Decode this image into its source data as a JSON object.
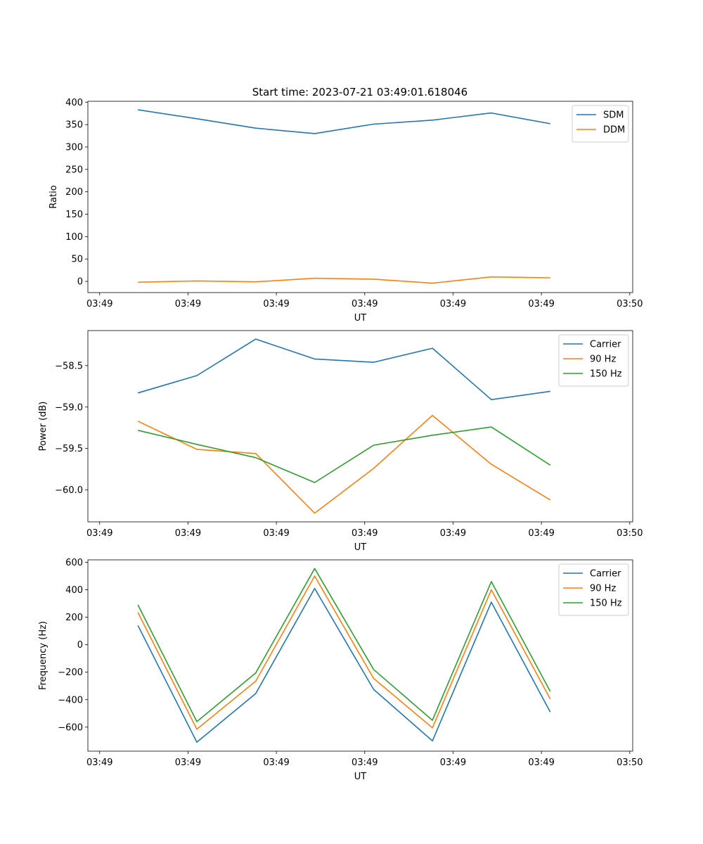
{
  "figure_title": "Start time: 2023-07-21 03:49:01.618046",
  "colors": {
    "blue": "#1f77b4",
    "orange": "#ff7f0e",
    "green": "#2ca02c"
  },
  "chart_data": [
    {
      "type": "line",
      "id": "ratio",
      "title": "Start time: 2023-07-21 03:49:01.618046",
      "xlabel": "UT",
      "ylabel": "Ratio",
      "x": [
        1,
        2,
        3,
        4,
        5,
        6,
        7,
        8
      ],
      "xlim": [
        0.15,
        9.4
      ],
      "xticks": [
        0.35,
        1.85,
        3.35,
        4.85,
        6.35,
        7.85,
        9.35
      ],
      "xticklabels": [
        "03:49",
        "03:49",
        "03:49",
        "03:49",
        "03:49",
        "03:49",
        "03:50"
      ],
      "ylim": [
        -25,
        402
      ],
      "yticks": [
        0,
        50,
        100,
        150,
        200,
        250,
        300,
        350,
        400
      ],
      "yticklabels": [
        "0",
        "50",
        "100",
        "150",
        "200",
        "250",
        "300",
        "350",
        "400"
      ],
      "legend_position": "top-right",
      "series": [
        {
          "name": "SDM",
          "color": "#1f77b4",
          "values": [
            383,
            363,
            342,
            330,
            351,
            360,
            376,
            352
          ]
        },
        {
          "name": "DDM",
          "color": "#ff7f0e",
          "values": [
            -2,
            1,
            -1,
            7,
            5,
            -4,
            10,
            8
          ]
        }
      ]
    },
    {
      "type": "line",
      "id": "power",
      "title": "",
      "xlabel": "UT",
      "ylabel": "Power (dB)",
      "x": [
        1,
        2,
        3,
        4,
        5,
        6,
        7,
        8
      ],
      "xlim": [
        0.15,
        9.4
      ],
      "xticks": [
        0.35,
        1.85,
        3.35,
        4.85,
        6.35,
        7.85,
        9.35
      ],
      "xticklabels": [
        "03:49",
        "03:49",
        "03:49",
        "03:49",
        "03:49",
        "03:49",
        "03:50"
      ],
      "ylim": [
        -60.385,
        -58.077
      ],
      "yticks": [
        -60.0,
        -59.5,
        -59.0,
        -58.5
      ],
      "yticklabels": [
        "−60.0",
        "−59.5",
        "−59.0",
        "−58.5"
      ],
      "legend_position": "top-right",
      "series": [
        {
          "name": "Carrier",
          "color": "#1f77b4",
          "values": [
            -58.83,
            -58.62,
            -58.18,
            -58.42,
            -58.46,
            -58.29,
            -58.91,
            -58.81
          ]
        },
        {
          "name": "90 Hz",
          "color": "#ff7f0e",
          "values": [
            -59.17,
            -59.51,
            -59.56,
            -60.28,
            -59.74,
            -59.1,
            -59.69,
            -60.12
          ]
        },
        {
          "name": "150 Hz",
          "color": "#2ca02c",
          "values": [
            -59.28,
            -59.45,
            -59.61,
            -59.91,
            -59.46,
            -59.34,
            -59.24,
            -59.7
          ]
        }
      ]
    },
    {
      "type": "line",
      "id": "frequency",
      "title": "",
      "xlabel": "UT",
      "ylabel": "Frequency (Hz)",
      "x": [
        1,
        2,
        3,
        4,
        5,
        6,
        7,
        8
      ],
      "xlim": [
        0.15,
        9.4
      ],
      "xticks": [
        0.35,
        1.85,
        3.35,
        4.85,
        6.35,
        7.85,
        9.35
      ],
      "xticklabels": [
        "03:49",
        "03:49",
        "03:49",
        "03:49",
        "03:49",
        "03:49",
        "03:50"
      ],
      "ylim": [
        -775,
        618
      ],
      "yticks": [
        -600,
        -400,
        -200,
        0,
        200,
        400,
        600
      ],
      "yticklabels": [
        "−600",
        "−400",
        "−200",
        "0",
        "200",
        "400",
        "600"
      ],
      "legend_position": "top-right",
      "series": [
        {
          "name": "Carrier",
          "color": "#1f77b4",
          "values": [
            140,
            -710,
            -355,
            410,
            -325,
            -700,
            310,
            -490
          ]
        },
        {
          "name": "90 Hz",
          "color": "#ff7f0e",
          "values": [
            235,
            -615,
            -265,
            500,
            -245,
            -605,
            400,
            -395
          ]
        },
        {
          "name": "150 Hz",
          "color": "#2ca02c",
          "values": [
            290,
            -560,
            -205,
            555,
            -180,
            -550,
            460,
            -340
          ]
        }
      ]
    }
  ]
}
